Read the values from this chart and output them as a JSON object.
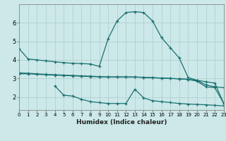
{
  "xlabel": "Humidex (Indice chaleur)",
  "bg_color": "#cce8e8",
  "grid_color": "#aacccc",
  "line_color": "#1a7070",
  "xlim": [
    0,
    23
  ],
  "ylim": [
    1.3,
    7.0
  ],
  "xticks": [
    0,
    1,
    2,
    3,
    4,
    5,
    6,
    7,
    8,
    9,
    10,
    11,
    12,
    13,
    14,
    15,
    16,
    17,
    18,
    19,
    20,
    21,
    22,
    23
  ],
  "yticks": [
    2,
    3,
    4,
    5,
    6
  ],
  "line1_x": [
    0,
    1,
    2,
    3,
    4,
    5,
    6,
    7,
    8,
    9,
    10,
    11,
    12,
    13,
    14,
    15,
    16,
    17,
    18,
    19,
    20,
    21,
    22,
    23
  ],
  "line1_y": [
    4.6,
    4.05,
    4.0,
    3.95,
    3.9,
    3.85,
    3.82,
    3.8,
    3.78,
    3.65,
    5.15,
    6.1,
    6.55,
    6.6,
    6.55,
    6.1,
    5.2,
    4.65,
    4.1,
    3.05,
    2.9,
    2.65,
    2.55,
    2.5
  ],
  "line2_x": [
    0,
    1,
    2,
    3,
    4,
    5,
    6,
    7,
    8,
    9,
    10,
    11,
    12,
    13,
    14,
    15,
    16,
    17,
    18,
    19,
    20,
    21,
    22,
    23
  ],
  "line2_y": [
    3.3,
    3.28,
    3.25,
    3.22,
    3.2,
    3.18,
    3.16,
    3.14,
    3.12,
    3.1,
    3.08,
    3.08,
    3.08,
    3.08,
    3.06,
    3.04,
    3.02,
    3.0,
    2.98,
    2.95,
    2.9,
    2.82,
    2.75,
    1.65
  ],
  "line3_x": [
    0,
    1,
    2,
    3,
    4,
    5,
    6,
    7,
    8,
    9,
    10,
    11,
    12,
    13,
    14,
    15,
    16,
    17,
    18,
    19,
    20,
    21,
    22,
    23
  ],
  "line3_y": [
    3.25,
    3.25,
    3.22,
    3.2,
    3.18,
    3.16,
    3.14,
    3.12,
    3.1,
    3.09,
    3.08,
    3.08,
    3.08,
    3.07,
    3.06,
    3.04,
    3.02,
    3.0,
    2.98,
    2.95,
    2.85,
    2.55,
    2.5,
    1.65
  ],
  "line4_x": [
    4,
    5,
    6,
    7,
    8,
    9,
    10,
    11,
    12,
    13,
    14,
    15,
    16,
    17,
    18,
    19,
    20,
    21,
    22,
    23
  ],
  "line4_y": [
    2.6,
    2.1,
    2.05,
    1.88,
    1.75,
    1.7,
    1.65,
    1.65,
    1.65,
    2.42,
    1.95,
    1.8,
    1.75,
    1.7,
    1.65,
    1.62,
    1.6,
    1.58,
    1.55,
    1.52
  ]
}
